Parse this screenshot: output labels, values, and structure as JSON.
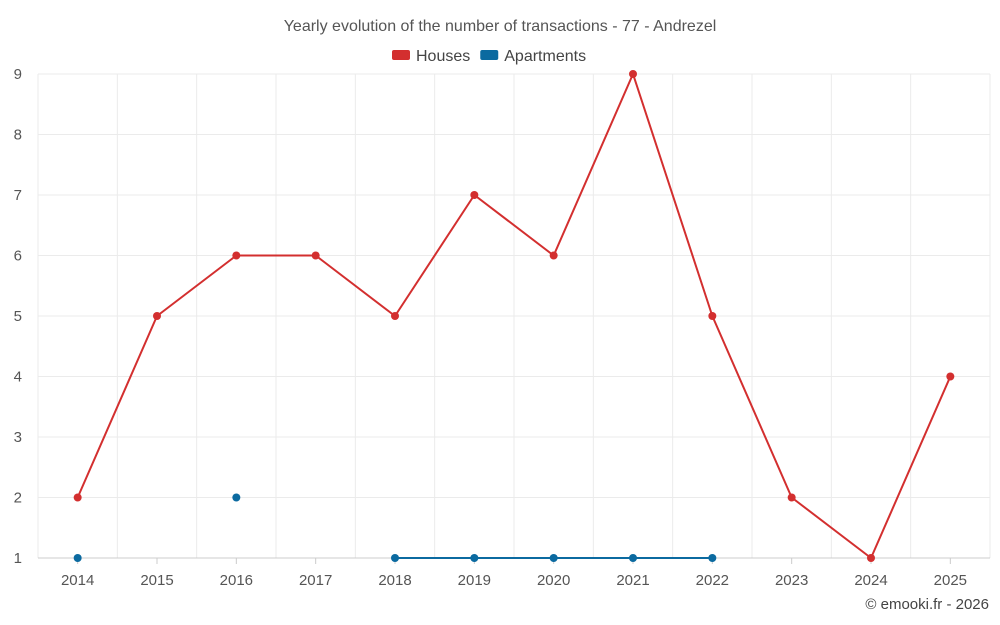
{
  "chart_data": {
    "type": "line",
    "title": "Yearly evolution of the number of transactions - 77 - Andrezel",
    "categories": [
      "2014",
      "2015",
      "2016",
      "2017",
      "2018",
      "2019",
      "2020",
      "2021",
      "2022",
      "2023",
      "2024",
      "2025"
    ],
    "ylim": [
      1,
      9
    ],
    "yticks": [
      1,
      2,
      3,
      4,
      5,
      6,
      7,
      8,
      9
    ],
    "grid": true,
    "legend_position": "top-center",
    "series": [
      {
        "name": "Houses",
        "color": "#d32f2f",
        "values": [
          2,
          5,
          6,
          6,
          5,
          7,
          6,
          9,
          5,
          2,
          1,
          4
        ]
      },
      {
        "name": "Apartments",
        "color": "#0b6aa0",
        "values": [
          1,
          null,
          2,
          null,
          1,
          1,
          1,
          1,
          1,
          null,
          null,
          null
        ]
      }
    ],
    "credit": "© emooki.fr - 2026"
  }
}
